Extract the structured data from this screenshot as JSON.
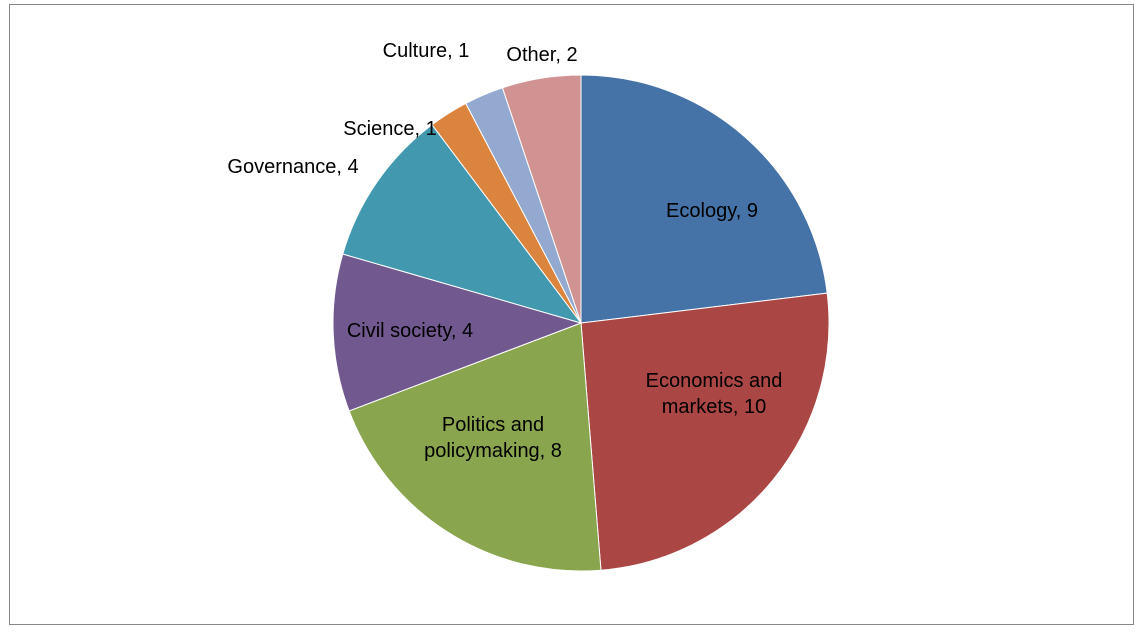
{
  "chart_data": {
    "type": "pie",
    "title": "",
    "start_angle_deg": 0,
    "direction": "clockwise",
    "slices": [
      {
        "label": "Ecology",
        "value": 9,
        "color": "#4572a7",
        "data_label": [
          "Ecology, 9"
        ]
      },
      {
        "label": "Economics and markets",
        "value": 10,
        "color": "#aa4643",
        "data_label": [
          "Economics and",
          "markets, 10"
        ]
      },
      {
        "label": "Politics and policymaking",
        "value": 8,
        "color": "#89a54e",
        "data_label": [
          "Politics and",
          "policymaking, 8"
        ]
      },
      {
        "label": "Civil society",
        "value": 4,
        "color": "#71588f",
        "data_label": [
          "Civil society, 4"
        ]
      },
      {
        "label": "Governance",
        "value": 4,
        "color": "#4198af",
        "data_label": [
          "Governance, 4"
        ]
      },
      {
        "label": "Science",
        "value": 1,
        "color": "#db843d",
        "data_label": [
          "Science, 1"
        ]
      },
      {
        "label": "Culture",
        "value": 1,
        "color": "#93a9cf",
        "data_label": [
          "Culture, 1"
        ]
      },
      {
        "label": "Other",
        "value": 2,
        "color": "#d19392",
        "data_label": [
          "Other, 2"
        ]
      }
    ],
    "legend": "none"
  }
}
